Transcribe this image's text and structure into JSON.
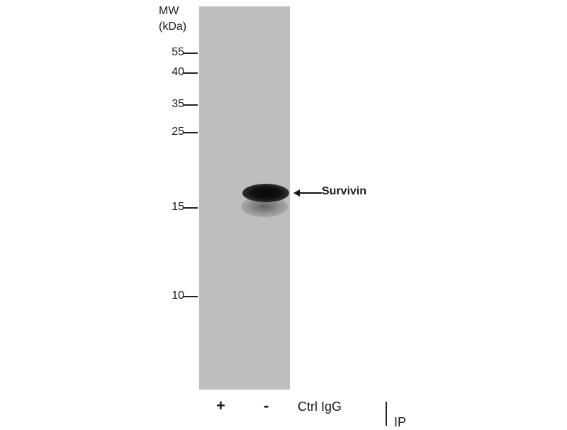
{
  "mw_header": {
    "line1": "MW",
    "line2": "(kDa)"
  },
  "markers": [
    "55",
    "40",
    "35",
    "25",
    "15",
    "10"
  ],
  "band_label": "Survivin",
  "lanes": [
    "+",
    "-"
  ],
  "lane_row_label": "Ctrl IgG",
  "bracket_label": "IP",
  "colors": {
    "membrane": "#bebebe",
    "band": "#0a0a0a"
  }
}
